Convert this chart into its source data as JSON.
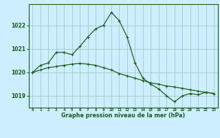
{
  "title": "Graphe pression niveau de la mer (hPa)",
  "background_color": "#cceeff",
  "grid_color": "#aacccc",
  "line_color": "#1a5c1a",
  "x_labels": [
    "0",
    "1",
    "2",
    "3",
    "4",
    "5",
    "6",
    "7",
    "8",
    "9",
    "10",
    "11",
    "12",
    "13",
    "14",
    "15",
    "16",
    "17",
    "18",
    "19",
    "20",
    "21",
    "22",
    "23"
  ],
  "x_values": [
    0,
    1,
    2,
    3,
    4,
    5,
    6,
    7,
    8,
    9,
    10,
    11,
    12,
    13,
    14,
    15,
    16,
    17,
    18,
    19,
    20,
    21,
    22,
    23
  ],
  "series1": [
    1020.0,
    1020.3,
    1020.4,
    1020.85,
    1020.85,
    1020.75,
    1021.1,
    1021.5,
    1021.85,
    1022.0,
    1022.55,
    1022.2,
    1021.5,
    1020.4,
    1019.75,
    1019.5,
    1019.3,
    1019.0,
    1018.75,
    1019.0,
    1019.1,
    1019.05,
    1019.15,
    1019.1
  ],
  "series2": [
    1020.0,
    1020.1,
    1020.2,
    1020.25,
    1020.3,
    1020.35,
    1020.38,
    1020.35,
    1020.3,
    1020.2,
    1020.1,
    1019.95,
    1019.85,
    1019.75,
    1019.65,
    1019.55,
    1019.5,
    1019.42,
    1019.38,
    1019.32,
    1019.26,
    1019.2,
    1019.15,
    1019.1
  ],
  "ylim": [
    1018.5,
    1022.9
  ],
  "yticks": [
    1019,
    1020,
    1021,
    1022
  ],
  "marker_size": 2.5,
  "line_width": 0.9
}
